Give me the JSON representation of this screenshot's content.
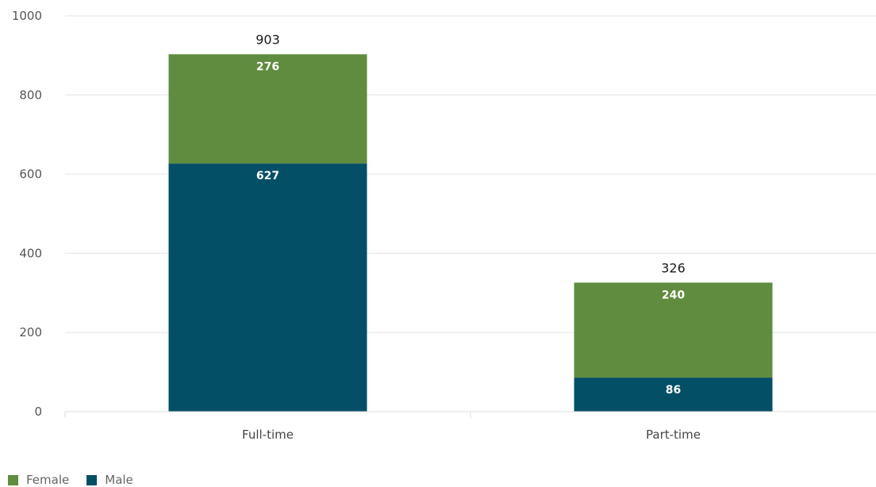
{
  "chart_data": {
    "type": "bar",
    "stacked": true,
    "categories": [
      "Full-time",
      "Part-time"
    ],
    "series": [
      {
        "name": "Male",
        "color": "#034f66",
        "values": [
          627,
          86
        ]
      },
      {
        "name": "Female",
        "color": "#5f8c3e",
        "values": [
          276,
          240
        ]
      }
    ],
    "totals": [
      903,
      326
    ],
    "y_ticks": [
      0,
      200,
      400,
      600,
      800,
      1000
    ],
    "ylim": [
      0,
      1000
    ],
    "grid": true,
    "legend_position": "bottom-left"
  },
  "legend": [
    {
      "label": "Female",
      "color": "#5f8c3e"
    },
    {
      "label": "Male",
      "color": "#034f66"
    }
  ]
}
